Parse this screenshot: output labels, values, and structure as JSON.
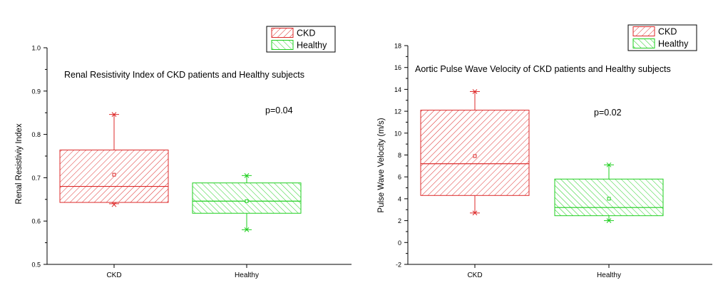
{
  "colors": {
    "ckd": "#dd2b2b",
    "healthy": "#1fcf1f",
    "axis": "#000000"
  },
  "chart_data": [
    {
      "type": "box",
      "title": "Renal Resistivity Index of CKD patients and Healthy subjects",
      "xlabel": "",
      "ylabel": "Renal Resistiviy Index",
      "ylim": [
        0.5,
        1.0
      ],
      "yticks": [
        0.5,
        0.6,
        0.7,
        0.8,
        0.9,
        1.0
      ],
      "ytick_labels": [
        "0.5",
        "0.6",
        "0.7",
        "0.8",
        "0.9",
        "1.0"
      ],
      "categories": [
        "CKD",
        "Healthy"
      ],
      "annotation": "p=0.04",
      "legend": [
        "CKD",
        "Healthy"
      ],
      "series": [
        {
          "name": "CKD",
          "q1": 0.643,
          "median": 0.68,
          "q3": 0.764,
          "mean": 0.707,
          "whisker_low": 0.64,
          "whisker_high": 0.846,
          "max_marker": 0.846,
          "min_marker": 0.638
        },
        {
          "name": "Healthy",
          "q1": 0.618,
          "median": 0.646,
          "q3": 0.688,
          "mean": 0.646,
          "whisker_low": 0.58,
          "whisker_high": 0.705,
          "max_marker": 0.705,
          "min_marker": 0.58
        }
      ]
    },
    {
      "type": "box",
      "title": "Aortic Pulse Wave Velocity of CKD patients and Healthy subjects",
      "xlabel": "",
      "ylabel": "Pulse Wave Velocity (m/s)",
      "ylim": [
        -2,
        18
      ],
      "yticks": [
        -2,
        0,
        2,
        4,
        6,
        8,
        10,
        12,
        14,
        16,
        18
      ],
      "ytick_labels": [
        "-2",
        "0",
        "2",
        "4",
        "6",
        "8",
        "10",
        "12",
        "14",
        "16",
        "18"
      ],
      "categories": [
        "CKD",
        "Healthy"
      ],
      "annotation": "p=0.02",
      "legend": [
        "CKD",
        "Healthy"
      ],
      "series": [
        {
          "name": "CKD",
          "q1": 4.3,
          "median": 7.2,
          "q3": 12.1,
          "mean": 7.9,
          "whisker_low": 2.7,
          "whisker_high": 13.8,
          "max_marker": 13.8,
          "min_marker": 2.7
        },
        {
          "name": "Healthy",
          "q1": 2.45,
          "median": 3.2,
          "q3": 5.8,
          "mean": 4.0,
          "whisker_low": 2.0,
          "whisker_high": 7.1,
          "max_marker": 7.1,
          "min_marker": 2.0
        }
      ]
    }
  ]
}
